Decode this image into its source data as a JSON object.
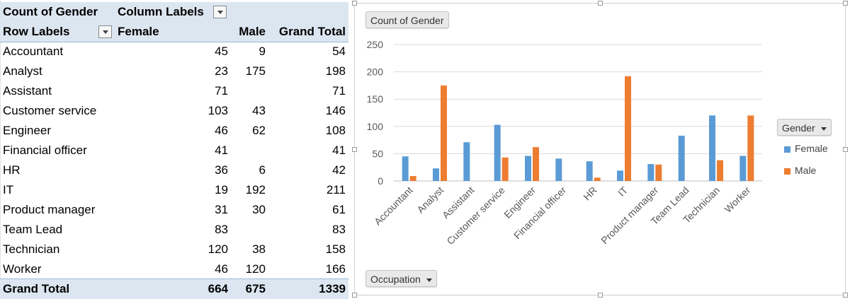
{
  "pivot": {
    "header1": {
      "values_label": "Count of Gender",
      "column_labels": "Column Labels"
    },
    "header2": {
      "row_labels": "Row Labels",
      "female": "Female",
      "male": "Male",
      "grand_total": "Grand Total"
    },
    "rows": [
      {
        "label": "Accountant",
        "female": "45",
        "male": "9",
        "total": "54"
      },
      {
        "label": "Analyst",
        "female": "23",
        "male": "175",
        "total": "198"
      },
      {
        "label": "Assistant",
        "female": "71",
        "male": "",
        "total": "71"
      },
      {
        "label": "Customer service",
        "female": "103",
        "male": "43",
        "total": "146"
      },
      {
        "label": "Engineer",
        "female": "46",
        "male": "62",
        "total": "108"
      },
      {
        "label": "Financial officer",
        "female": "41",
        "male": "",
        "total": "41"
      },
      {
        "label": "HR",
        "female": "36",
        "male": "6",
        "total": "42"
      },
      {
        "label": "IT",
        "female": "19",
        "male": "192",
        "total": "211"
      },
      {
        "label": "Product manager",
        "female": "31",
        "male": "30",
        "total": "61"
      },
      {
        "label": "Team Lead",
        "female": "83",
        "male": "",
        "total": "83"
      },
      {
        "label": "Technician",
        "female": "120",
        "male": "38",
        "total": "158"
      },
      {
        "label": "Worker",
        "female": "46",
        "male": "120",
        "total": "166"
      }
    ],
    "grand_total": {
      "label": "Grand Total",
      "female": "664",
      "male": "675",
      "total": "1339"
    },
    "colors": {
      "band": "#dce6f1"
    }
  },
  "chart": {
    "value_field_button": "Count of Gender",
    "axis_field_button": "Occupation",
    "legend_field_button": "Gender",
    "colors": {
      "female": "#5b9bd5",
      "male": "#ed7d31",
      "grid": "#d9d9d9",
      "axis_text": "#595959"
    }
  },
  "chart_data": {
    "type": "bar",
    "categories": [
      "Accountant",
      "Analyst",
      "Assistant",
      "Customer service",
      "Engineer",
      "Financial officer",
      "HR",
      "IT",
      "Product manager",
      "Team Lead",
      "Technician",
      "Worker"
    ],
    "series": [
      {
        "name": "Female",
        "values": [
          45,
          23,
          71,
          103,
          46,
          41,
          36,
          19,
          31,
          83,
          120,
          46
        ]
      },
      {
        "name": "Male",
        "values": [
          9,
          175,
          0,
          43,
          62,
          0,
          6,
          192,
          30,
          0,
          38,
          120
        ]
      }
    ],
    "yticks": [
      "0",
      "50",
      "100",
      "150",
      "200",
      "250"
    ],
    "ylim": [
      0,
      250
    ],
    "grid": true,
    "legend_position": "right"
  }
}
